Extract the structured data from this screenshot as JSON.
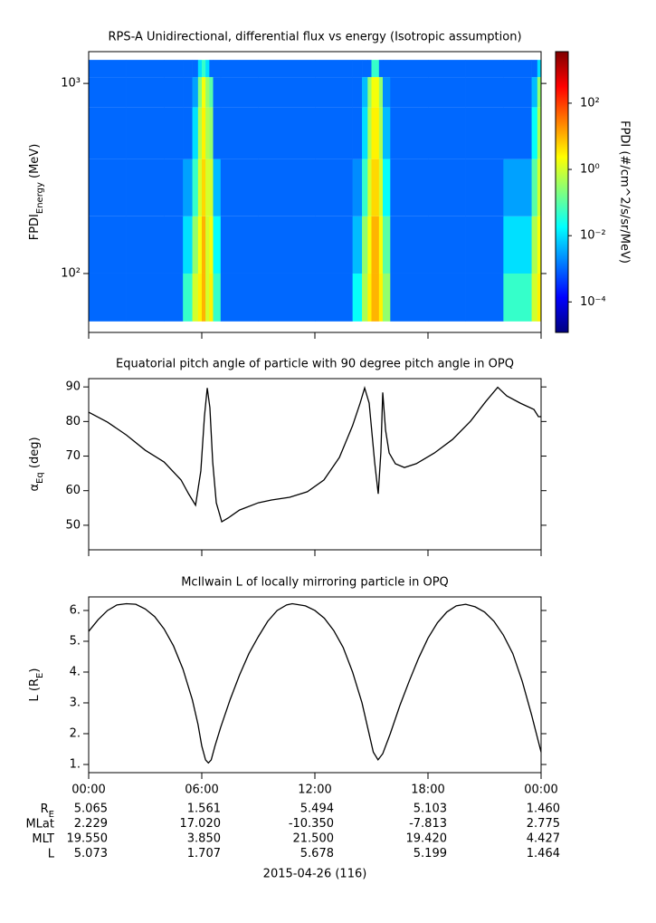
{
  "chart_data": [
    {
      "type": "heatmap",
      "title": "RPS-A Unidirectional, differential flux vs energy (Isotropic assumption)",
      "ylabel": [
        "FPDI",
        {
          "sub": "Energy"
        },
        " (MeV)"
      ],
      "xlim": [
        0,
        24
      ],
      "xticks": [
        0,
        6,
        12,
        18,
        24
      ],
      "ylim": [
        49,
        1470
      ],
      "ylog": true,
      "yticks": [
        {
          "value": 100,
          "label": "10²"
        },
        {
          "value": 1000,
          "label": "10³"
        }
      ],
      "x_edges": [
        0,
        2,
        4,
        5,
        5.5,
        5.8,
        6.0,
        6.2,
        6.4,
        6.6,
        7,
        9,
        12,
        14,
        14.5,
        14.8,
        15.0,
        15.2,
        15.4,
        15.6,
        16,
        18,
        20,
        22,
        23.5,
        23.8,
        24
      ],
      "y_edges": [
        56,
        100,
        200,
        400,
        750,
        1080,
        1330
      ],
      "z": [
        [
          0.001,
          0.001,
          0.001,
          0.05,
          1,
          3,
          10,
          1,
          3,
          0.05,
          0.001,
          0.001,
          0.001,
          0.02,
          0.5,
          3,
          10,
          10,
          3,
          0.3,
          0.001,
          0.001,
          0.001,
          0.05,
          1,
          3
        ],
        [
          0.001,
          0.001,
          0.001,
          0.01,
          0.3,
          2,
          10,
          1,
          2,
          0.02,
          0.001,
          0.001,
          0.001,
          0.005,
          0.3,
          2,
          10,
          10,
          2,
          0.1,
          0.001,
          0.001,
          0.001,
          0.01,
          0.5,
          2
        ],
        [
          0.001,
          0.001,
          0.001,
          0.003,
          0.05,
          1,
          5,
          1,
          1,
          0.005,
          0.001,
          0.001,
          0.001,
          0.002,
          0.05,
          1,
          5,
          5,
          1,
          0.02,
          0.001,
          0.001,
          0.001,
          0.003,
          0.1,
          1
        ],
        [
          0.001,
          0.001,
          0.001,
          0.001,
          0.01,
          0.5,
          3,
          0.5,
          0.3,
          0.001,
          0.001,
          0.001,
          0.001,
          0.001,
          0.01,
          0.5,
          3,
          3,
          0.5,
          0.005,
          0.001,
          0.001,
          0.001,
          0.001,
          0.02,
          0.5
        ],
        [
          0.001,
          0.001,
          0.001,
          0.001,
          0.003,
          0.2,
          2,
          0.3,
          0.1,
          0.001,
          0.001,
          0.001,
          0.001,
          0.001,
          0.005,
          0.3,
          2,
          2,
          0.3,
          0.002,
          0.001,
          0.001,
          0.001,
          0.001,
          0.005,
          0.3
        ],
        [
          0.001,
          0.001,
          0.001,
          0.001,
          0.001,
          0.01,
          0.05,
          0.01,
          0.001,
          0.001,
          0.001,
          0.001,
          0.001,
          0.001,
          0.001,
          0.001,
          0.05,
          0.05,
          0.001,
          0.001,
          0.001,
          0.001,
          0.001,
          0.001,
          0.001,
          0.01
        ]
      ],
      "colorbar": {
        "label": "FPDI (#/cm^2/s/sr/MeV)",
        "zlim": [
          1.2e-05,
          3600
        ],
        "log": true,
        "colormap": "jet",
        "ticks": [
          {
            "value": 0.0001,
            "label": "10⁻⁴"
          },
          {
            "value": 0.01,
            "label": "10⁻²"
          },
          {
            "value": 1,
            "label": "10⁰"
          },
          {
            "value": 100,
            "label": "10²"
          }
        ]
      }
    },
    {
      "type": "line",
      "title": "Equatorial pitch angle of particle with 90 degree pitch angle in OPQ",
      "ylabel": [
        "α",
        {
          "sub": "Eq"
        },
        " (deg)"
      ],
      "xlim": [
        0,
        24
      ],
      "xticks": [
        0,
        6,
        12,
        18,
        24
      ],
      "ylim": [
        42.9,
        92.4
      ],
      "yticks": [
        50,
        60,
        70,
        80,
        90
      ],
      "color": "#000000",
      "x": [
        0,
        1,
        2,
        3,
        4,
        4.9,
        5.3,
        5.67,
        5.95,
        6.14,
        6.29,
        6.43,
        6.58,
        6.77,
        7.06,
        7.4,
        8.0,
        9.0,
        9.7,
        10.66,
        11.6,
        12.48,
        13.3,
        14.0,
        14.4,
        14.64,
        14.88,
        15.17,
        15.36,
        15.5,
        15.6,
        15.75,
        15.94,
        16.27,
        16.75,
        17.38,
        18.34,
        19.3,
        20.26,
        21.07,
        21.7,
        22.18,
        22.9,
        23.62,
        23.86,
        24
      ],
      "values": [
        82.7,
        79.8,
        76.1,
        71.7,
        68.3,
        63.1,
        59.1,
        55.8,
        65.7,
        81.4,
        89.7,
        84,
        68.3,
        56.5,
        51.0,
        52.1,
        54.4,
        56.5,
        57.3,
        58.1,
        59.7,
        63.1,
        69.6,
        78.8,
        85.3,
        89.7,
        85.3,
        68.3,
        59.1,
        71,
        88.4,
        77.5,
        70.9,
        67.8,
        66.7,
        67.8,
        70.9,
        74.8,
        80.1,
        85.8,
        89.9,
        87.4,
        85.3,
        83.5,
        81.4,
        81.4
      ]
    },
    {
      "type": "line",
      "title": "McIlwain L of locally mirroring particle in OPQ",
      "ylabel": [
        "L (R",
        {
          "sub": "E"
        },
        ")"
      ],
      "xlim": [
        0,
        24
      ],
      "xticks": [
        {
          "value": 0,
          "label": "00:00"
        },
        {
          "value": 6,
          "label": "06:00"
        },
        {
          "value": 12,
          "label": "12:00"
        },
        {
          "value": 18,
          "label": "18:00"
        },
        {
          "value": 24,
          "label": "00:00"
        }
      ],
      "ylim": [
        0.735,
        6.44
      ],
      "yticks": [
        {
          "value": 1,
          "label": "1."
        },
        {
          "value": 2,
          "label": "2."
        },
        {
          "value": 3,
          "label": "3."
        },
        {
          "value": 4,
          "label": "4."
        },
        {
          "value": 5,
          "label": "5."
        },
        {
          "value": 6,
          "label": "6."
        }
      ],
      "color": "#000000",
      "x": [
        0,
        0.5,
        1,
        1.5,
        2,
        2.5,
        3,
        3.5,
        4,
        4.5,
        5,
        5.5,
        5.8,
        6.0,
        6.2,
        6.35,
        6.5,
        6.7,
        7.0,
        7.5,
        8,
        8.5,
        9,
        9.5,
        10,
        10.5,
        10.8,
        11.5,
        12,
        12.5,
        13,
        13.5,
        14,
        14.5,
        14.8,
        15.1,
        15.35,
        15.6,
        16,
        16.5,
        17,
        17.5,
        18,
        18.5,
        19,
        19.5,
        20,
        20.5,
        21,
        21.5,
        22,
        22.5,
        23,
        23.5,
        24
      ],
      "values": [
        5.32,
        5.7,
        6.0,
        6.18,
        6.22,
        6.2,
        6.05,
        5.8,
        5.4,
        4.85,
        4.1,
        3.1,
        2.3,
        1.6,
        1.15,
        1.05,
        1.15,
        1.6,
        2.2,
        3.1,
        3.9,
        4.6,
        5.15,
        5.65,
        6.0,
        6.18,
        6.22,
        6.15,
        6.0,
        5.75,
        5.35,
        4.8,
        4.0,
        3.0,
        2.2,
        1.4,
        1.15,
        1.35,
        2.0,
        2.9,
        3.7,
        4.45,
        5.1,
        5.6,
        5.95,
        6.15,
        6.2,
        6.12,
        5.95,
        5.65,
        5.2,
        4.6,
        3.7,
        2.6,
        1.4
      ]
    }
  ],
  "ephemeris": {
    "rows": [
      {
        "label": [
          "R",
          {
            "sub": "E"
          }
        ],
        "values": [
          "5.065",
          "1.561",
          "5.494",
          "5.103",
          "1.460"
        ]
      },
      {
        "label": [
          "MLat"
        ],
        "values": [
          "2.229",
          "17.020",
          "-10.350",
          "-7.813",
          "2.775"
        ]
      },
      {
        "label": [
          "MLT"
        ],
        "values": [
          "19.550",
          "3.850",
          "21.500",
          "19.420",
          "4.427"
        ]
      },
      {
        "label": [
          "L"
        ],
        "values": [
          "5.073",
          "1.707",
          "5.678",
          "5.199",
          "1.464"
        ]
      }
    ],
    "date": "2015-04-26 (116)"
  }
}
